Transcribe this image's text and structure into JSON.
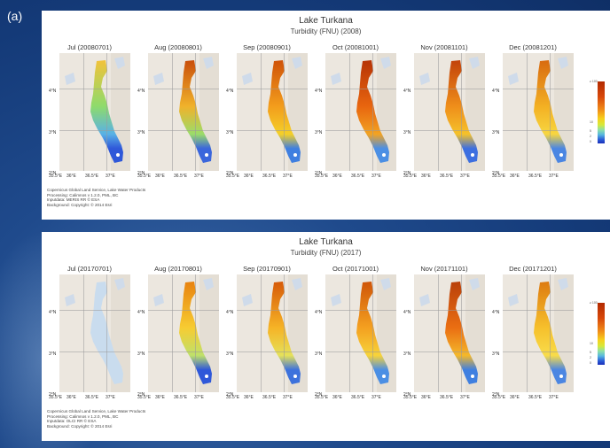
{
  "figure_label": "(a)",
  "panels": [
    {
      "title": "Lake Turkana",
      "subtitle": "Turbidity (FNU) (2008)",
      "months": [
        "Jul (20080701)",
        "Aug (20080801)",
        "Sep (20080901)",
        "Oct (20081001)",
        "Nov (20081101)",
        "Dec (20081201)"
      ],
      "credits": [
        "Copernicus Global Land Service, Lake Water Products",
        "Processing: Calimnos v 1.2.0, PML, BC",
        "Inputdata: MERIS RR © ESA",
        "Background: Copyright: © 2014 Esri"
      ]
    },
    {
      "title": "Lake Turkana",
      "subtitle": "Turbidity (FNU) (2017)",
      "months": [
        "Jul (20170701)",
        "Aug (20170801)",
        "Sep (20170901)",
        "Oct (20171001)",
        "Nov (20171101)",
        "Dec (20171201)"
      ],
      "credits": [
        "Copernicus Global Land Service, Lake Water Products",
        "Processing: Calimnos v 1.2.0, PML, BC",
        "Inputdata: OLCI RR © ESA",
        "Background: Copyright: © 2014 Esri"
      ]
    }
  ],
  "lat_labels": [
    "4°N",
    "3°N",
    "2°N"
  ],
  "lon_labels": [
    "35.5°E",
    "36°E",
    "36.5°E",
    "37°E"
  ],
  "colorbar_ticks": [
    "≥ 100",
    "10",
    "5",
    "2",
    "0"
  ]
}
